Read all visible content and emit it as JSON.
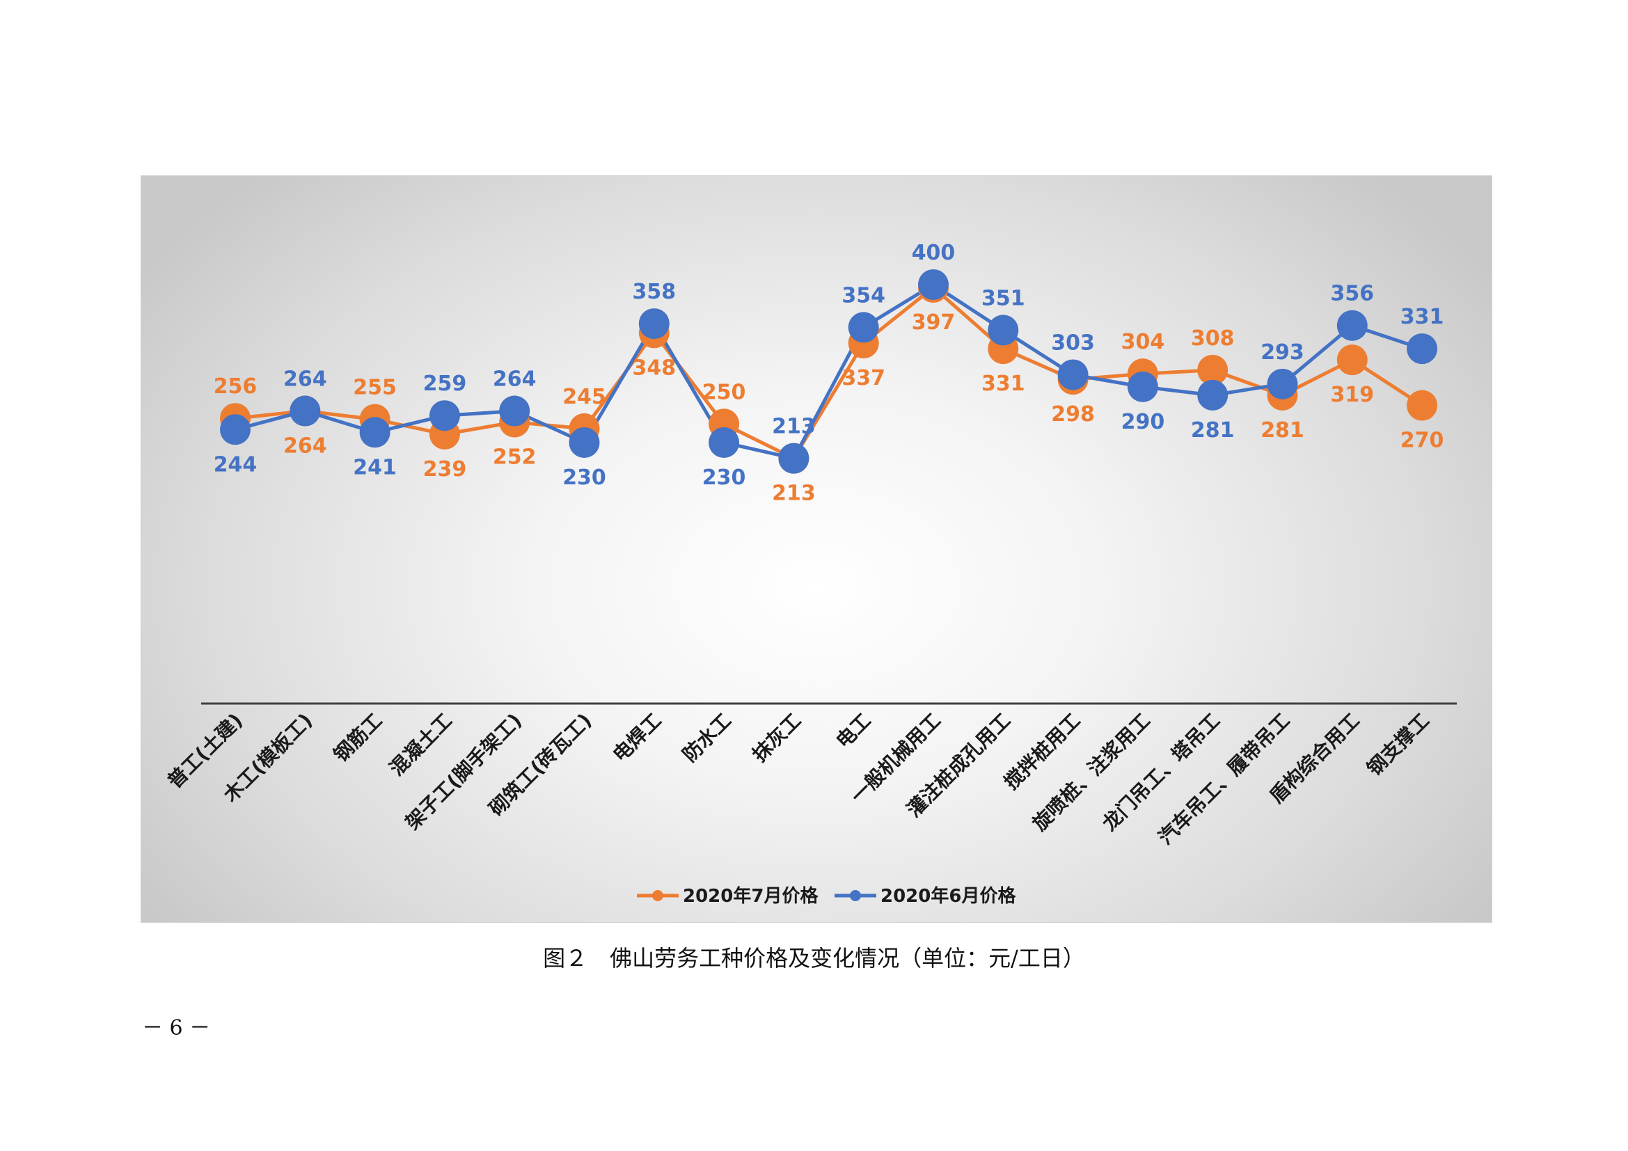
{
  "caption": "图２　佛山劳务工种价格及变化情况（单位：元/工日）",
  "page_number": "－ 6 －",
  "colors": {
    "july": "#ed7d31",
    "june": "#4472c4",
    "axis": "#404040"
  },
  "chart_data": {
    "type": "line",
    "categories": [
      "普工(土建)",
      "木工(模板工)",
      "钢筋工",
      "混凝土工",
      "架子工(脚手架工)",
      "砌筑工(砖瓦工)",
      "电焊工",
      "防水工",
      "抹灰工",
      "电工",
      "一般机械用工",
      "灌注桩成孔用工",
      "搅拌桩用工",
      "旋喷桩、注浆用工",
      "龙门吊工、塔吊工",
      "汽车吊工、履带吊工",
      "盾构综合用工",
      "钢支撑工"
    ],
    "series": [
      {
        "name": "2020年7月价格",
        "color": "#ed7d31",
        "values": [
          256,
          264,
          255,
          239,
          252,
          245,
          348,
          250,
          213,
          337,
          397,
          331,
          298,
          304,
          308,
          281,
          319,
          270
        ]
      },
      {
        "name": "2020年6月价格",
        "color": "#4472c4",
        "values": [
          244,
          264,
          241,
          259,
          264,
          230,
          358,
          230,
          213,
          354,
          400,
          351,
          303,
          290,
          281,
          293,
          356,
          331
        ]
      }
    ],
    "label_side": {
      "july": [
        "above",
        "below",
        "above",
        "below",
        "below",
        "above",
        "below",
        "above",
        "below",
        "below",
        "below",
        "below",
        "below",
        "above",
        "above",
        "below",
        "below",
        "below"
      ],
      "june": [
        "below",
        "above",
        "below",
        "above",
        "above",
        "below",
        "above",
        "below",
        "above",
        "above",
        "above",
        "above",
        "above",
        "below",
        "below",
        "above",
        "above",
        "above"
      ]
    },
    "legend_position": "bottom",
    "grid": false
  }
}
